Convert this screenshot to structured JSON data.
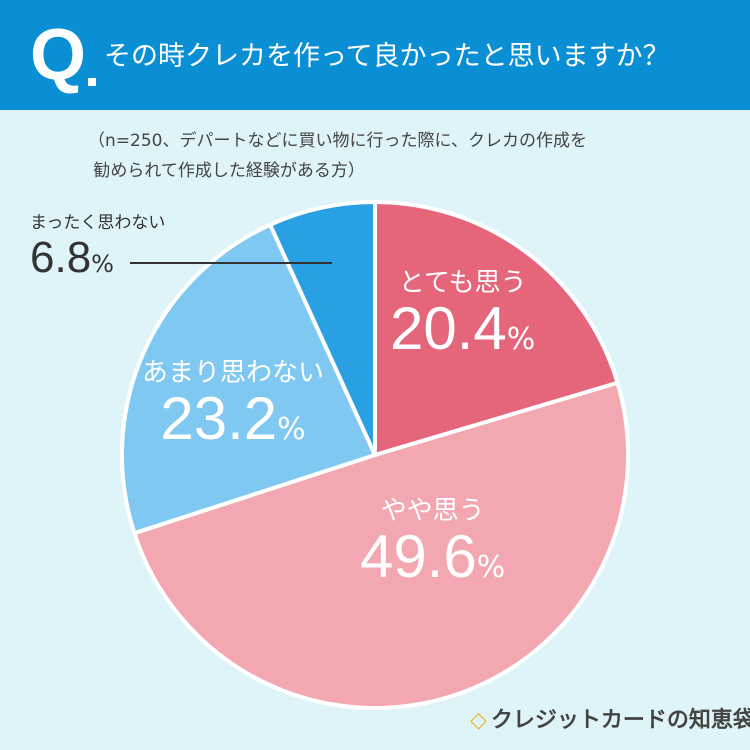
{
  "header": {
    "q_mark": "Q",
    "title": "その時クレカを作って良かったと思いますか？"
  },
  "note": "（n=250、デパートなどに買い物に行った際に、クレカの作成を\n 勧められて作成した経験がある方）",
  "chart_data": {
    "type": "pie",
    "start": "top, clockwise",
    "categories": [
      "とても思う",
      "やや思う",
      "あまり思わない",
      "まったく思わない"
    ],
    "values": [
      20.4,
      49.6,
      23.2,
      6.8
    ],
    "value_labels": [
      "20.4",
      "49.6",
      "23.2",
      "6.8"
    ],
    "unit": "%",
    "colors": [
      "#e5667a",
      "#f2a7b1",
      "#7fc8f2",
      "#29a0e3"
    ]
  },
  "logo": {
    "text": "クレジットカードの知恵袋",
    "icon": "bulb-icon"
  }
}
